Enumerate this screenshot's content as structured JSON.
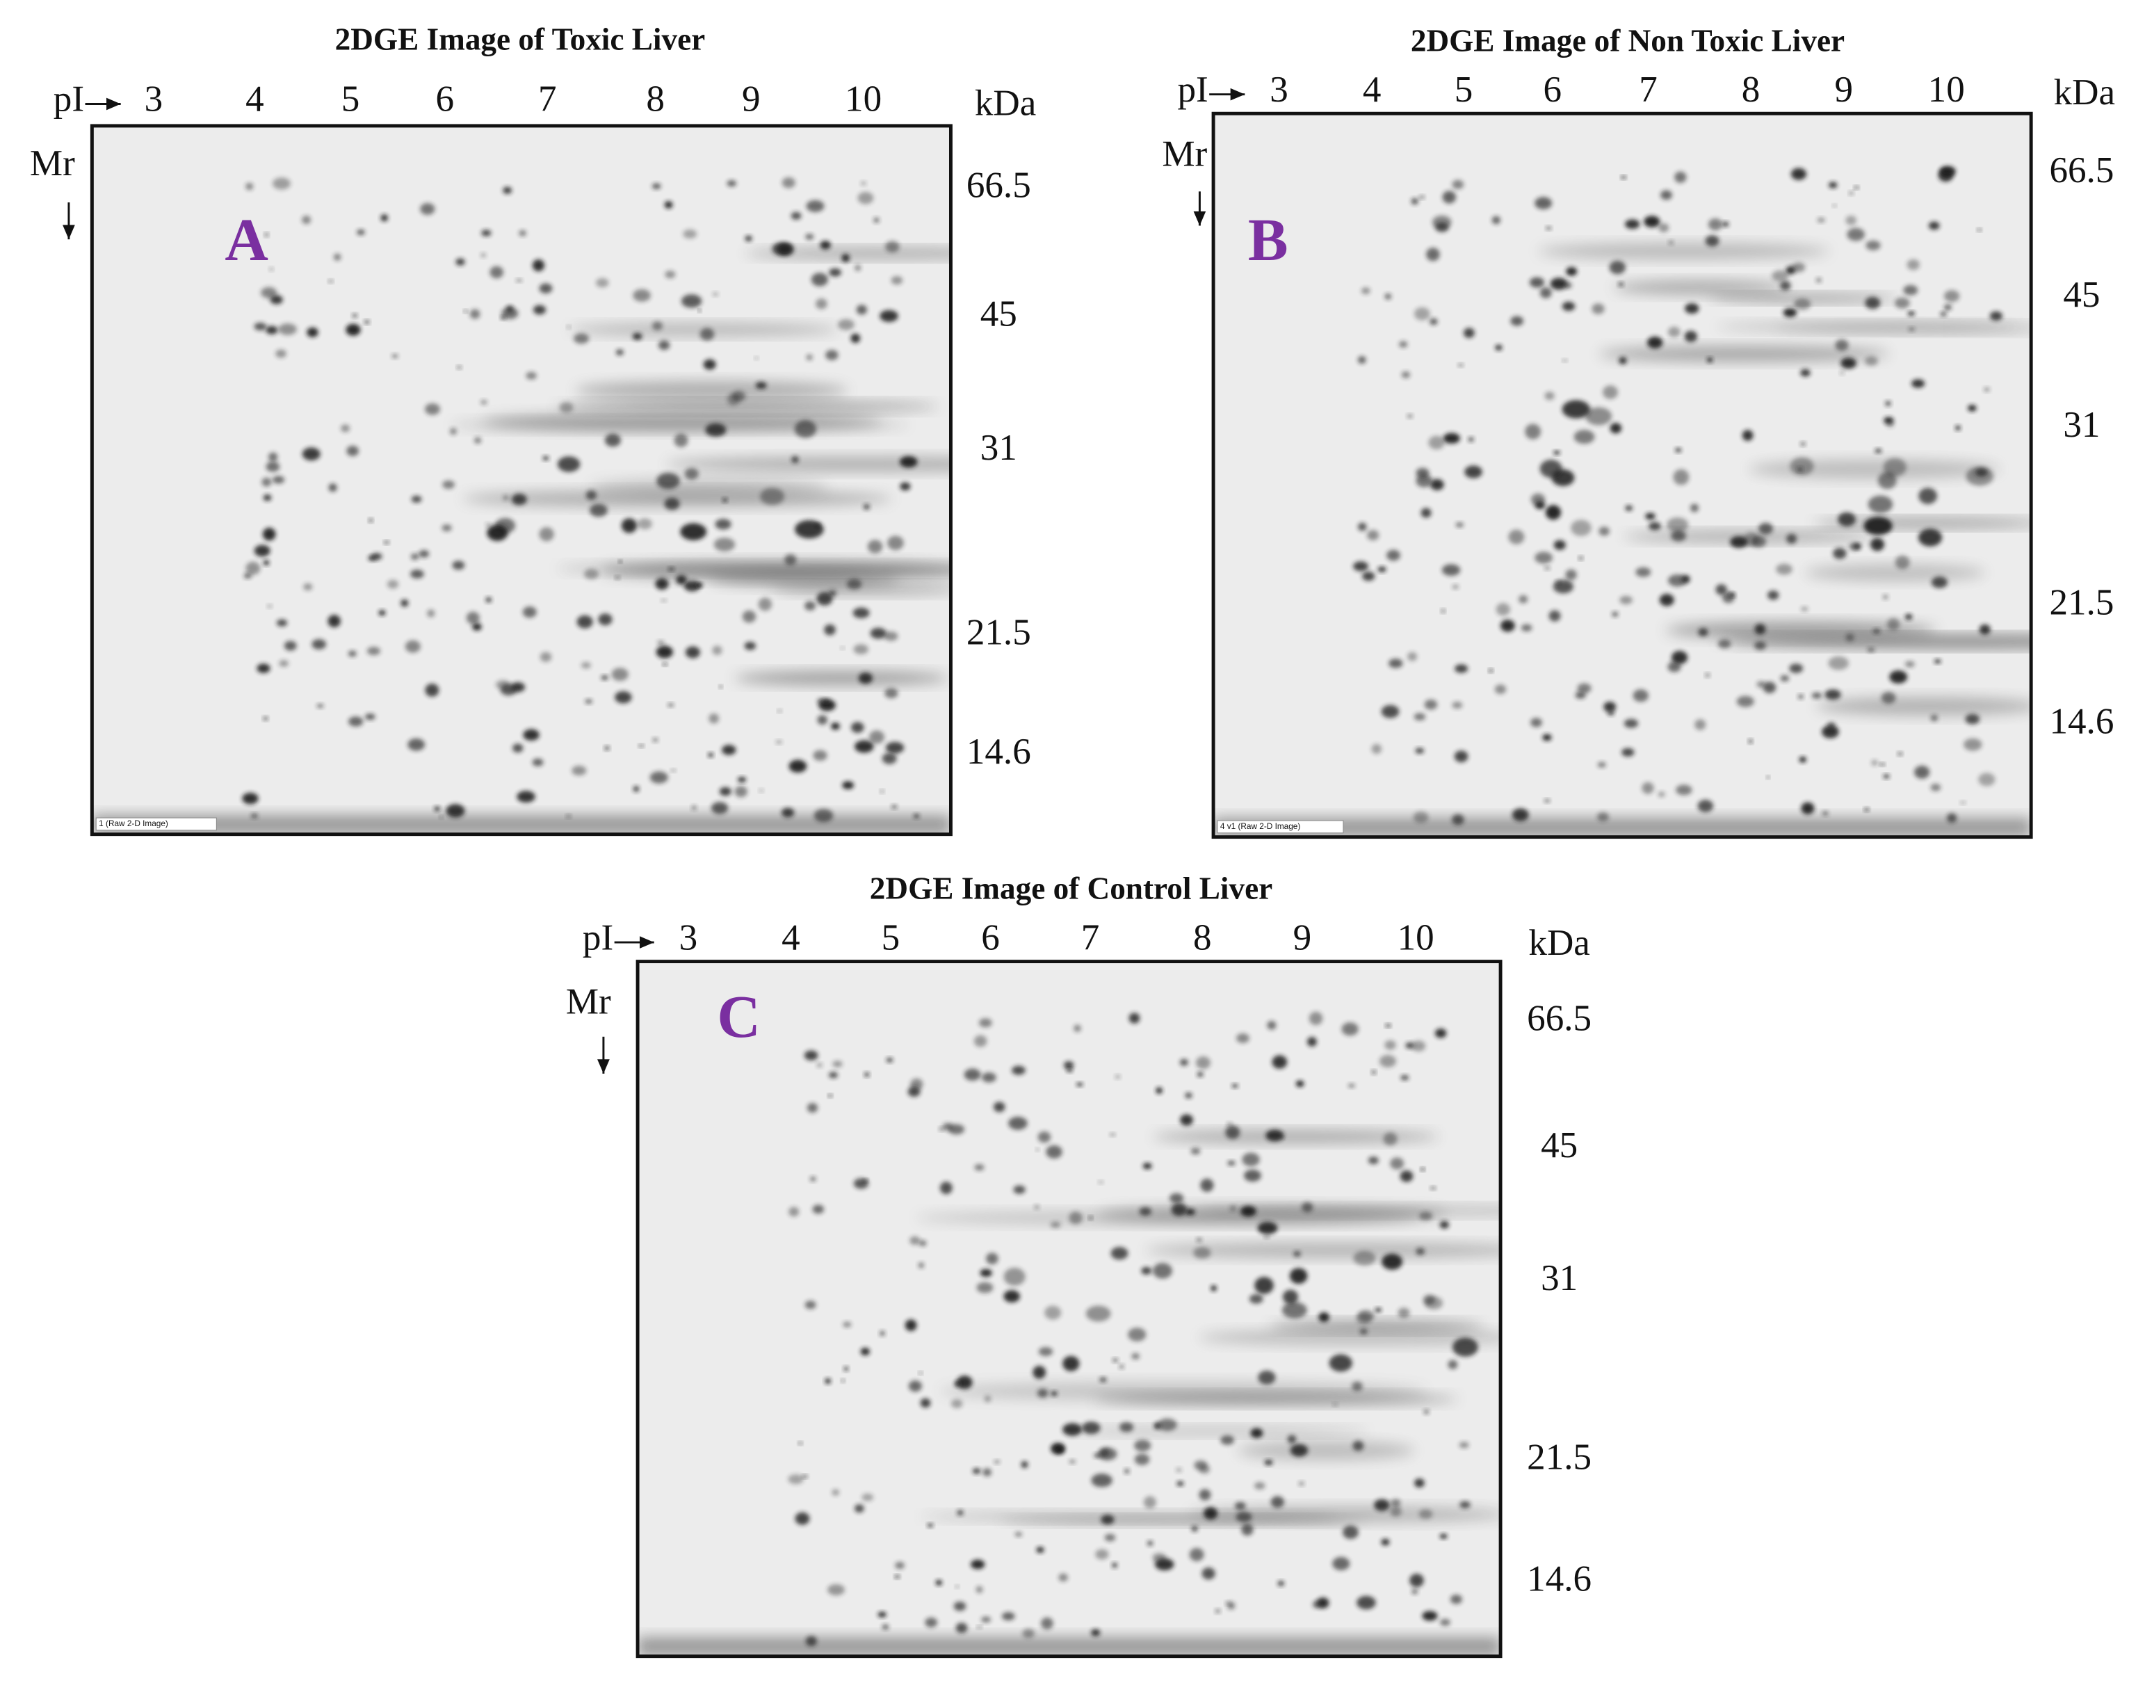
{
  "panels": [
    {
      "title": "2DGE Image of Toxic Liver",
      "letter": "A",
      "pi_label": "pI",
      "mr_label": "Mr",
      "unit": "kDa",
      "pi_ticks": [
        "3",
        "4",
        "5",
        "6",
        "7",
        "8",
        "9",
        "10"
      ],
      "mr_ticks": [
        "66.5",
        "45",
        "31",
        "21.5",
        "14.6"
      ],
      "caption": "1 (Raw 2-D Image)"
    },
    {
      "title": "2DGE Image of Non Toxic Liver",
      "letter": "B",
      "pi_label": "pI",
      "mr_label": "Mr",
      "unit": "kDa",
      "pi_ticks": [
        "3",
        "4",
        "5",
        "6",
        "7",
        "8",
        "9",
        "10"
      ],
      "mr_ticks": [
        "66.5",
        "45",
        "31",
        "21.5",
        "14.6"
      ],
      "caption": "4 v1 (Raw 2-D Image)"
    },
    {
      "title": "2DGE Image of Control Liver",
      "letter": "C",
      "pi_label": "pI",
      "mr_label": "Mr",
      "unit": "kDa",
      "pi_ticks": [
        "3",
        "4",
        "5",
        "6",
        "7",
        "8",
        "9",
        "10"
      ],
      "mr_ticks": [
        "66.5",
        "45",
        "31",
        "21.5",
        "14.6"
      ]
    }
  ]
}
